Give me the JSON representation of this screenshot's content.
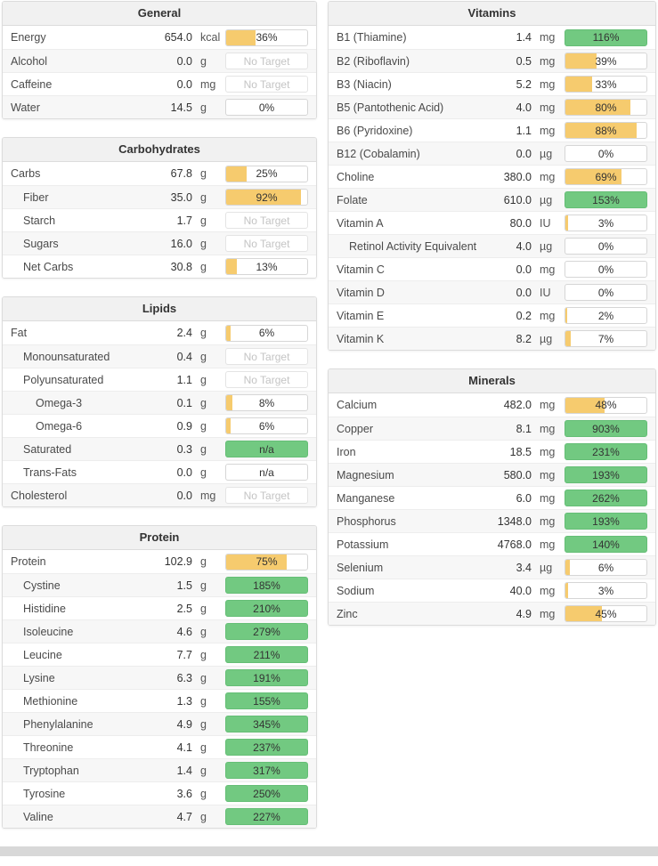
{
  "colors": {
    "orange": "#F6CB6E",
    "green": "#72C981",
    "green_border": "#65BE76"
  },
  "sections": [
    {
      "column": "left",
      "title": "General",
      "rows": [
        {
          "label": "Energy",
          "value": "654.0",
          "unit": "kcal",
          "indent": 0,
          "bar": {
            "style": "orange",
            "label": "36%",
            "fill": 36
          }
        },
        {
          "label": "Alcohol",
          "value": "0.0",
          "unit": "g",
          "indent": 0,
          "bar": {
            "style": "no-target",
            "label": "No Target",
            "fill": 0
          }
        },
        {
          "label": "Caffeine",
          "value": "0.0",
          "unit": "mg",
          "indent": 0,
          "bar": {
            "style": "no-target",
            "label": "No Target",
            "fill": 0
          }
        },
        {
          "label": "Water",
          "value": "14.5",
          "unit": "g",
          "indent": 0,
          "bar": {
            "style": "plain",
            "label": "0%",
            "fill": 0
          }
        }
      ]
    },
    {
      "column": "left",
      "title": "Carbohydrates",
      "rows": [
        {
          "label": "Carbs",
          "value": "67.8",
          "unit": "g",
          "indent": 0,
          "bar": {
            "style": "orange",
            "label": "25%",
            "fill": 25
          }
        },
        {
          "label": "Fiber",
          "value": "35.0",
          "unit": "g",
          "indent": 1,
          "bar": {
            "style": "orange",
            "label": "92%",
            "fill": 92
          }
        },
        {
          "label": "Starch",
          "value": "1.7",
          "unit": "g",
          "indent": 1,
          "bar": {
            "style": "no-target",
            "label": "No Target",
            "fill": 0
          }
        },
        {
          "label": "Sugars",
          "value": "16.0",
          "unit": "g",
          "indent": 1,
          "bar": {
            "style": "no-target",
            "label": "No Target",
            "fill": 0
          }
        },
        {
          "label": "Net Carbs",
          "value": "30.8",
          "unit": "g",
          "indent": 1,
          "bar": {
            "style": "orange",
            "label": "13%",
            "fill": 13
          }
        }
      ]
    },
    {
      "column": "left",
      "title": "Lipids",
      "rows": [
        {
          "label": "Fat",
          "value": "2.4",
          "unit": "g",
          "indent": 0,
          "bar": {
            "style": "orange",
            "label": "6%",
            "fill": 6
          }
        },
        {
          "label": "Monounsaturated",
          "value": "0.4",
          "unit": "g",
          "indent": 1,
          "bar": {
            "style": "no-target",
            "label": "No Target",
            "fill": 0
          }
        },
        {
          "label": "Polyunsaturated",
          "value": "1.1",
          "unit": "g",
          "indent": 1,
          "bar": {
            "style": "no-target",
            "label": "No Target",
            "fill": 0
          }
        },
        {
          "label": "Omega-3",
          "value": "0.1",
          "unit": "g",
          "indent": 2,
          "bar": {
            "style": "orange",
            "label": "8%",
            "fill": 8
          }
        },
        {
          "label": "Omega-6",
          "value": "0.9",
          "unit": "g",
          "indent": 2,
          "bar": {
            "style": "orange",
            "label": "6%",
            "fill": 6
          }
        },
        {
          "label": "Saturated",
          "value": "0.3",
          "unit": "g",
          "indent": 1,
          "bar": {
            "style": "green",
            "label": "n/a",
            "fill": 100
          }
        },
        {
          "label": "Trans-Fats",
          "value": "0.0",
          "unit": "g",
          "indent": 1,
          "bar": {
            "style": "plain",
            "label": "n/a",
            "fill": 0
          }
        },
        {
          "label": "Cholesterol",
          "value": "0.0",
          "unit": "mg",
          "indent": 0,
          "bar": {
            "style": "no-target",
            "label": "No Target",
            "fill": 0
          }
        }
      ]
    },
    {
      "column": "left",
      "title": "Protein",
      "rows": [
        {
          "label": "Protein",
          "value": "102.9",
          "unit": "g",
          "indent": 0,
          "bar": {
            "style": "orange",
            "label": "75%",
            "fill": 75
          }
        },
        {
          "label": "Cystine",
          "value": "1.5",
          "unit": "g",
          "indent": 1,
          "bar": {
            "style": "green",
            "label": "185%",
            "fill": 100
          }
        },
        {
          "label": "Histidine",
          "value": "2.5",
          "unit": "g",
          "indent": 1,
          "bar": {
            "style": "green",
            "label": "210%",
            "fill": 100
          }
        },
        {
          "label": "Isoleucine",
          "value": "4.6",
          "unit": "g",
          "indent": 1,
          "bar": {
            "style": "green",
            "label": "279%",
            "fill": 100
          }
        },
        {
          "label": "Leucine",
          "value": "7.7",
          "unit": "g",
          "indent": 1,
          "bar": {
            "style": "green",
            "label": "211%",
            "fill": 100
          }
        },
        {
          "label": "Lysine",
          "value": "6.3",
          "unit": "g",
          "indent": 1,
          "bar": {
            "style": "green",
            "label": "191%",
            "fill": 100
          }
        },
        {
          "label": "Methionine",
          "value": "1.3",
          "unit": "g",
          "indent": 1,
          "bar": {
            "style": "green",
            "label": "155%",
            "fill": 100
          }
        },
        {
          "label": "Phenylalanine",
          "value": "4.9",
          "unit": "g",
          "indent": 1,
          "bar": {
            "style": "green",
            "label": "345%",
            "fill": 100
          }
        },
        {
          "label": "Threonine",
          "value": "4.1",
          "unit": "g",
          "indent": 1,
          "bar": {
            "style": "green",
            "label": "237%",
            "fill": 100
          }
        },
        {
          "label": "Tryptophan",
          "value": "1.4",
          "unit": "g",
          "indent": 1,
          "bar": {
            "style": "green",
            "label": "317%",
            "fill": 100
          }
        },
        {
          "label": "Tyrosine",
          "value": "3.6",
          "unit": "g",
          "indent": 1,
          "bar": {
            "style": "green",
            "label": "250%",
            "fill": 100
          }
        },
        {
          "label": "Valine",
          "value": "4.7",
          "unit": "g",
          "indent": 1,
          "bar": {
            "style": "green",
            "label": "227%",
            "fill": 100
          }
        }
      ]
    },
    {
      "column": "right",
      "title": "Vitamins",
      "rows": [
        {
          "label": "B1 (Thiamine)",
          "value": "1.4",
          "unit": "mg",
          "indent": 0,
          "bar": {
            "style": "green",
            "label": "116%",
            "fill": 100
          }
        },
        {
          "label": "B2 (Riboflavin)",
          "value": "0.5",
          "unit": "mg",
          "indent": 0,
          "bar": {
            "style": "orange",
            "label": "39%",
            "fill": 39
          }
        },
        {
          "label": "B3 (Niacin)",
          "value": "5.2",
          "unit": "mg",
          "indent": 0,
          "bar": {
            "style": "orange",
            "label": "33%",
            "fill": 33
          }
        },
        {
          "label": "B5 (Pantothenic Acid)",
          "value": "4.0",
          "unit": "mg",
          "indent": 0,
          "bar": {
            "style": "orange",
            "label": "80%",
            "fill": 80
          }
        },
        {
          "label": "B6 (Pyridoxine)",
          "value": "1.1",
          "unit": "mg",
          "indent": 0,
          "bar": {
            "style": "orange",
            "label": "88%",
            "fill": 88
          }
        },
        {
          "label": "B12 (Cobalamin)",
          "value": "0.0",
          "unit": "µg",
          "indent": 0,
          "bar": {
            "style": "plain",
            "label": "0%",
            "fill": 0
          }
        },
        {
          "label": "Choline",
          "value": "380.0",
          "unit": "mg",
          "indent": 0,
          "bar": {
            "style": "orange",
            "label": "69%",
            "fill": 69
          }
        },
        {
          "label": "Folate",
          "value": "610.0",
          "unit": "µg",
          "indent": 0,
          "bar": {
            "style": "green",
            "label": "153%",
            "fill": 100
          }
        },
        {
          "label": "Vitamin A",
          "value": "80.0",
          "unit": "IU",
          "indent": 0,
          "bar": {
            "style": "orange",
            "label": "3%",
            "fill": 3
          }
        },
        {
          "label": "Retinol Activity Equivalent",
          "value": "4.0",
          "unit": "µg",
          "indent": 1,
          "bar": {
            "style": "plain",
            "label": "0%",
            "fill": 0
          }
        },
        {
          "label": "Vitamin C",
          "value": "0.0",
          "unit": "mg",
          "indent": 0,
          "bar": {
            "style": "plain",
            "label": "0%",
            "fill": 0
          }
        },
        {
          "label": "Vitamin D",
          "value": "0.0",
          "unit": "IU",
          "indent": 0,
          "bar": {
            "style": "plain",
            "label": "0%",
            "fill": 0
          }
        },
        {
          "label": "Vitamin E",
          "value": "0.2",
          "unit": "mg",
          "indent": 0,
          "bar": {
            "style": "orange",
            "label": "2%",
            "fill": 2
          }
        },
        {
          "label": "Vitamin K",
          "value": "8.2",
          "unit": "µg",
          "indent": 0,
          "bar": {
            "style": "orange",
            "label": "7%",
            "fill": 7
          }
        }
      ]
    },
    {
      "column": "right",
      "title": "Minerals",
      "rows": [
        {
          "label": "Calcium",
          "value": "482.0",
          "unit": "mg",
          "indent": 0,
          "bar": {
            "style": "orange",
            "label": "48%",
            "fill": 48
          }
        },
        {
          "label": "Copper",
          "value": "8.1",
          "unit": "mg",
          "indent": 0,
          "bar": {
            "style": "green",
            "label": "903%",
            "fill": 100
          }
        },
        {
          "label": "Iron",
          "value": "18.5",
          "unit": "mg",
          "indent": 0,
          "bar": {
            "style": "green",
            "label": "231%",
            "fill": 100
          }
        },
        {
          "label": "Magnesium",
          "value": "580.0",
          "unit": "mg",
          "indent": 0,
          "bar": {
            "style": "green",
            "label": "193%",
            "fill": 100
          }
        },
        {
          "label": "Manganese",
          "value": "6.0",
          "unit": "mg",
          "indent": 0,
          "bar": {
            "style": "green",
            "label": "262%",
            "fill": 100
          }
        },
        {
          "label": "Phosphorus",
          "value": "1348.0",
          "unit": "mg",
          "indent": 0,
          "bar": {
            "style": "green",
            "label": "193%",
            "fill": 100
          }
        },
        {
          "label": "Potassium",
          "value": "4768.0",
          "unit": "mg",
          "indent": 0,
          "bar": {
            "style": "green",
            "label": "140%",
            "fill": 100
          }
        },
        {
          "label": "Selenium",
          "value": "3.4",
          "unit": "µg",
          "indent": 0,
          "bar": {
            "style": "orange",
            "label": "6%",
            "fill": 6
          }
        },
        {
          "label": "Sodium",
          "value": "40.0",
          "unit": "mg",
          "indent": 0,
          "bar": {
            "style": "orange",
            "label": "3%",
            "fill": 3
          }
        },
        {
          "label": "Zinc",
          "value": "4.9",
          "unit": "mg",
          "indent": 0,
          "bar": {
            "style": "orange",
            "label": "45%",
            "fill": 45
          }
        }
      ]
    }
  ]
}
